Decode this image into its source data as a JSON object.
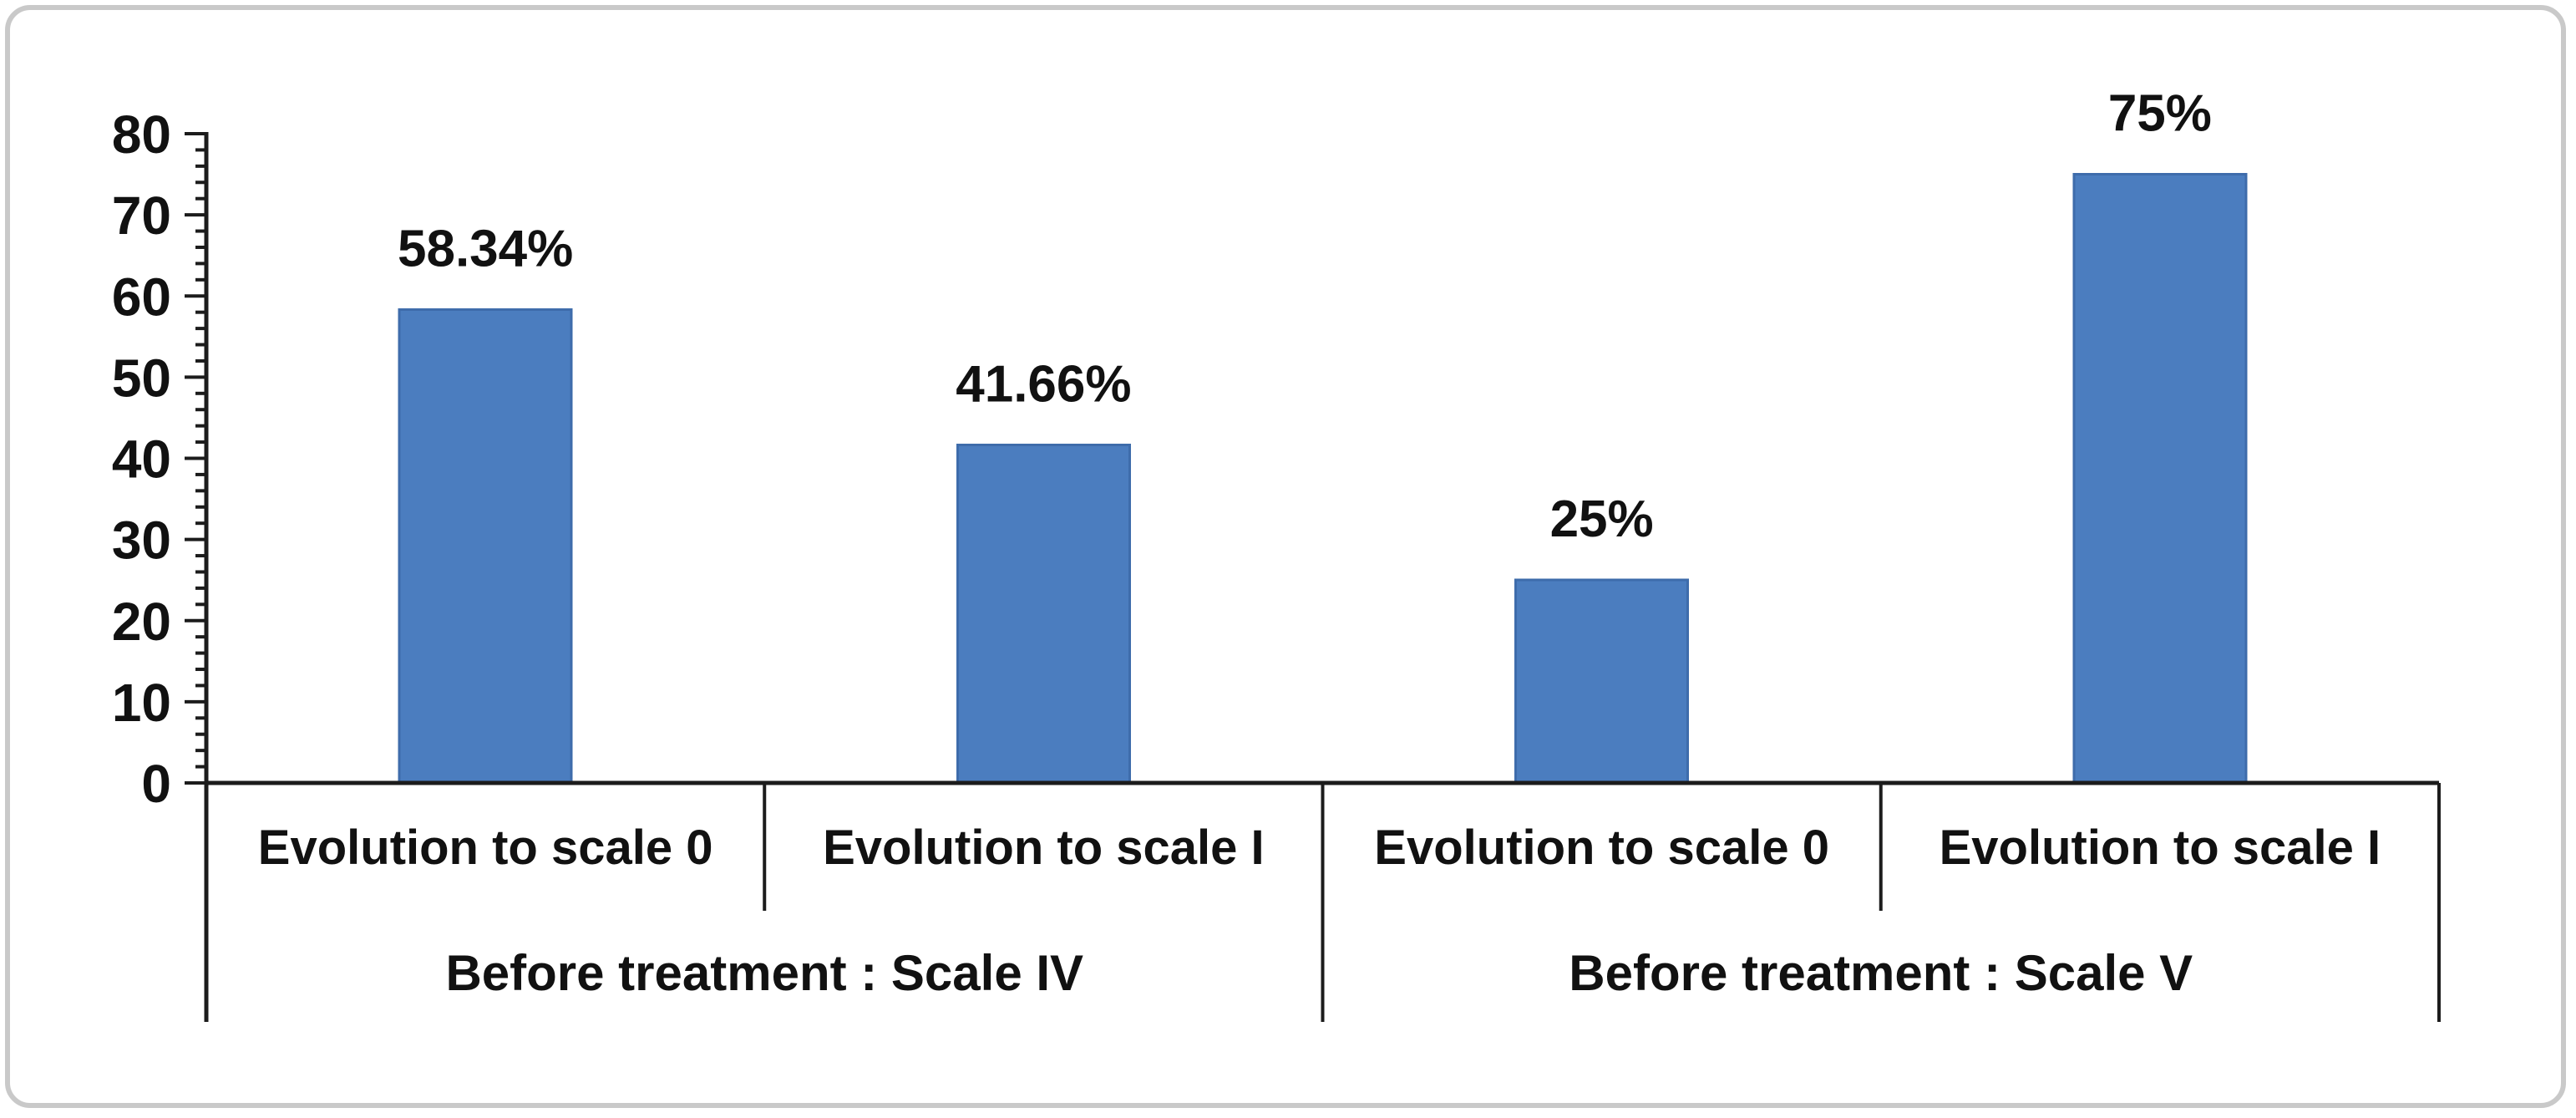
{
  "frame": {
    "background_color": "#ffffff",
    "border_color": "#c9c9c9"
  },
  "chart_data": {
    "type": "bar",
    "title": "",
    "xlabel": "",
    "ylabel": "",
    "categories": [
      "Evolution to scale 0",
      "Evolution to scale I",
      "Evolution to scale 0",
      "Evolution to scale I"
    ],
    "values": [
      58.34,
      41.66,
      25,
      75
    ],
    "data_labels": [
      "58.34%",
      "41.66%",
      "25%",
      "75%"
    ],
    "groups": [
      {
        "label": "Before treatment : Scale IV",
        "categories": [
          "Evolution to scale 0",
          "Evolution to scale I"
        ],
        "values": [
          58.34,
          41.66
        ]
      },
      {
        "label": "Before treatment : Scale V",
        "categories": [
          "Evolution to scale 0",
          "Evolution to scale I"
        ],
        "values": [
          25,
          75
        ]
      }
    ],
    "ylim": [
      0,
      80
    ],
    "yticks": [
      0,
      10,
      20,
      30,
      40,
      50,
      60,
      70,
      80
    ],
    "minor_tick_interval": 2,
    "grid": "off",
    "legend": "none",
    "bar_color": "#4b7dbf",
    "bar_border_color": "#3e6cab",
    "axis_color": "#1c1c1c",
    "text_color": "#111111"
  }
}
